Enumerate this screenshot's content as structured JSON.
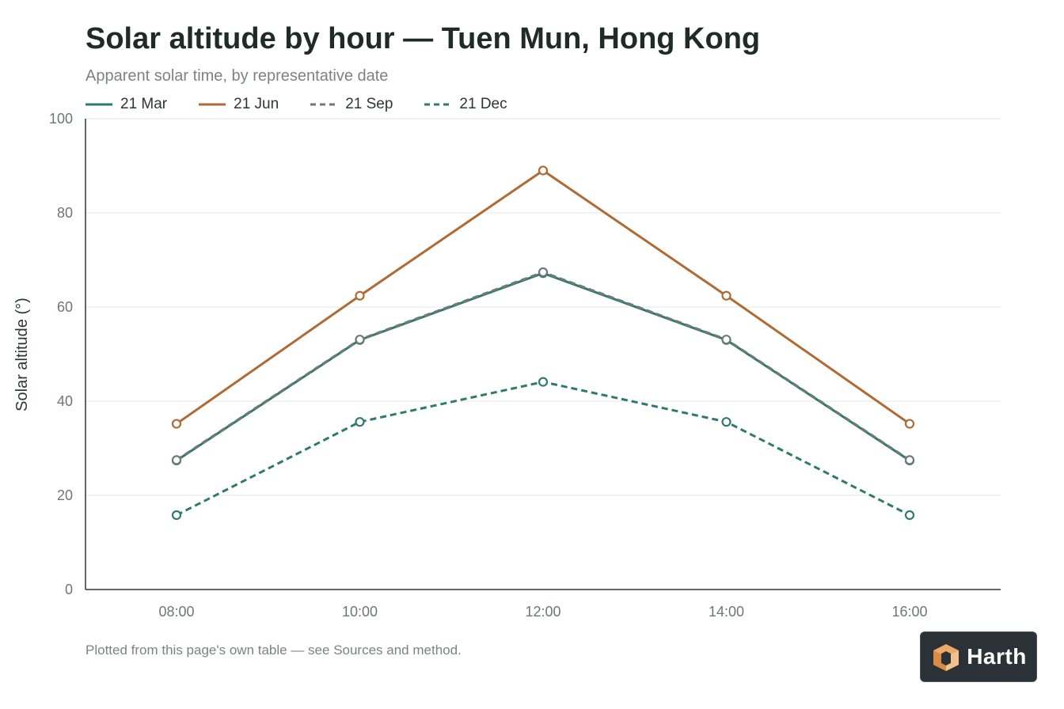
{
  "chart_data": {
    "type": "line",
    "title": "Solar altitude by hour — Tuen Mun, Hong Kong",
    "subtitle": "Apparent solar time, by representative date",
    "xlabel": "",
    "ylabel": "Solar altitude (°)",
    "x": [
      "08:00",
      "10:00",
      "12:00",
      "14:00",
      "16:00"
    ],
    "ylim": [
      0,
      100
    ],
    "yticks": [
      0,
      20,
      40,
      60,
      80,
      100
    ],
    "grid": true,
    "legend_position": "top-left",
    "series": [
      {
        "name": "21 Mar",
        "values": [
          27.4,
          53.0,
          67.2,
          53.0,
          27.4
        ],
        "color": "#2e7a6f",
        "dash": "solid"
      },
      {
        "name": "21 Jun",
        "values": [
          35.2,
          62.4,
          89.0,
          62.4,
          35.2
        ],
        "color": "#b06a34",
        "dash": "solid"
      },
      {
        "name": "21 Sep",
        "values": [
          27.5,
          53.1,
          67.4,
          53.1,
          27.5
        ],
        "color": "#6f7a76",
        "dash": "dashed"
      },
      {
        "name": "21 Dec",
        "values": [
          15.8,
          35.6,
          44.1,
          35.6,
          15.8
        ],
        "color": "#2e7a6f",
        "dash": "dashed"
      }
    ]
  },
  "footnote": "Plotted from this page's own table — see Sources and method.",
  "logo": {
    "text": "Harth",
    "icon": "cube-icon",
    "bg_color": "#2a3238",
    "accent_color": "#f0a868"
  }
}
